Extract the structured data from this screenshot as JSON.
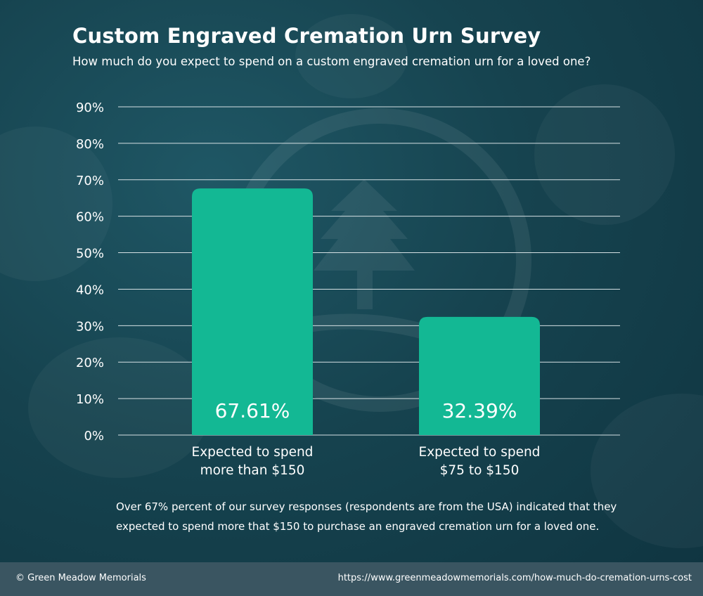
{
  "header": {
    "title": "Custom Engraved Cremation Urn Survey",
    "subtitle": "How much do you expect to spend on a custom engraved cremation urn for a loved one?"
  },
  "chart_data": {
    "type": "bar",
    "categories": [
      [
        "Expected to spend",
        "more than $150"
      ],
      [
        "Expected to spend",
        "$75 to $150"
      ]
    ],
    "values": [
      67.61,
      32.39
    ],
    "value_labels": [
      "67.61%",
      "32.39%"
    ],
    "y_ticks": [
      0,
      10,
      20,
      30,
      40,
      50,
      60,
      70,
      80,
      90
    ],
    "y_tick_labels": [
      "0%",
      "10%",
      "20%",
      "30%",
      "40%",
      "50%",
      "60%",
      "70%",
      "80%",
      "90%"
    ],
    "ylim": [
      0,
      90
    ],
    "grid": true,
    "bar_color": "#13b894",
    "grid_color": "#d5e0e3"
  },
  "description": "Over 67% percent of our survey responses (respondents are from the USA) indicated that they expected to spend more that $150 to purchase an engraved cremation urn for a loved one.",
  "footer": {
    "copyright": "© Green Meadow Memorials",
    "url": "https://www.greenmeadowmemorials.com/how-much-do-cremation-urns-cost"
  },
  "background_logo": "tree-in-circle-logo"
}
